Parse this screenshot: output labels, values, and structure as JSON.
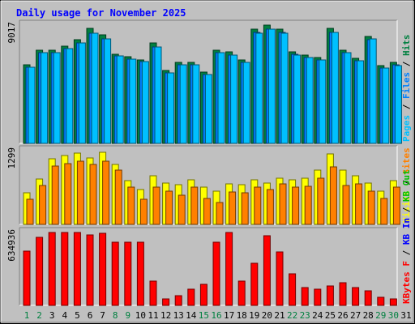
{
  "chart_data": {
    "title": "Daily usage for November 2025",
    "type": "bar",
    "x": [
      "1",
      "2",
      "3",
      "4",
      "5",
      "6",
      "7",
      "8",
      "9",
      "10",
      "11",
      "12",
      "13",
      "14",
      "15",
      "16",
      "17",
      "18",
      "19",
      "20",
      "21",
      "22",
      "23",
      "24",
      "25",
      "26",
      "27",
      "28",
      "29",
      "30",
      "31"
    ],
    "weekend_days": [
      "1",
      "2",
      "8",
      "9",
      "15",
      "16",
      "22",
      "23",
      "29",
      "30"
    ],
    "colors": {
      "pages": "#00c0ff",
      "files": "#0080ff",
      "hits": "#008040",
      "visits": "#ffff00",
      "sites": "#ff8000",
      "kb_f": "#ff0000",
      "kb_in": "#0000ff",
      "kb_out": "#00c000",
      "title": "#0000ff",
      "weekend_label": "#008040",
      "weekday_label": "#000000",
      "panel_bg": "#c0c0c0"
    },
    "panels": [
      {
        "name": "hits-files-pages",
        "max_label": "9017",
        "ymax": 9017,
        "legend": [
          {
            "text": "Pages",
            "color": "#00c0ff"
          },
          {
            "text": " / ",
            "color": "#000000"
          },
          {
            "text": "Files",
            "color": "#0080ff"
          },
          {
            "text": " / ",
            "color": "#000000"
          },
          {
            "text": "Hits",
            "color": "#008040"
          }
        ],
        "series": [
          {
            "name": "Hits",
            "color": "#008040",
            "values": [
              5980,
              7120,
              7120,
              7440,
              7900,
              8780,
              8280,
              6820,
              6580,
              6350,
              7650,
              5550,
              6160,
              6160,
              5430,
              7120,
              6980,
              6350,
              8710,
              9017,
              8710,
              6970,
              6760,
              6560,
              8750,
              7120,
              6460,
              8180,
              5910,
              6160,
              0
            ]
          },
          {
            "name": "Files",
            "color": "#0080ff",
            "values": [
              5810,
              6920,
              6920,
              7240,
              7640,
              8430,
              7960,
              6660,
              6420,
              6210,
              7380,
              5380,
              5960,
              5960,
              5260,
              6920,
              6760,
              6170,
              8440,
              8720,
              8440,
              6770,
              6560,
              6370,
              8450,
              6920,
              6270,
              7930,
              5720,
              5960,
              0
            ]
          },
          {
            "name": "Pages",
            "color": "#00c0ff",
            "values": [
              5800,
              6900,
              6920,
              7230,
              7630,
              8430,
              7950,
              6650,
              6410,
              6210,
              7360,
              5380,
              5960,
              5960,
              5250,
              6900,
              6740,
              6160,
              8420,
              8720,
              8420,
              6760,
              6560,
              6360,
              8450,
              6910,
              6270,
              7940,
              5720,
              5950,
              0
            ]
          }
        ]
      },
      {
        "name": "visits-sites",
        "max_label": "1299",
        "ymax": 1299,
        "legend": [
          {
            "text": "Visits",
            "color": "#ffff00"
          },
          {
            "text": " / ",
            "color": "#000000"
          },
          {
            "text": "Sites",
            "color": "#ff8000"
          }
        ],
        "series": [
          {
            "name": "Visits",
            "color": "#ffff00",
            "values": [
              560,
              800,
              1160,
              1220,
              1250,
              1170,
              1270,
              1060,
              770,
              620,
              850,
              730,
              700,
              780,
              660,
              590,
              710,
              700,
              780,
              730,
              820,
              790,
              820,
              950,
              1240,
              960,
              860,
              730,
              580,
              770,
              0
            ]
          },
          {
            "name": "Sites",
            "color": "#ff8000",
            "values": [
              440,
              680,
              1030,
              1070,
              1110,
              1050,
              1110,
              950,
              650,
              440,
              660,
              580,
              510,
              660,
              460,
              380,
              570,
              550,
              660,
              610,
              710,
              660,
              670,
              810,
              1020,
              690,
              710,
              590,
              450,
              660,
              0
            ]
          }
        ]
      },
      {
        "name": "kbytes",
        "max_label": "634936",
        "ymax": 634936,
        "legend": [
          {
            "text": "KBytes F",
            "color": "#ff0000"
          },
          {
            "text": " / ",
            "color": "#000000"
          },
          {
            "text": "KB In",
            "color": "#0000ff"
          },
          {
            "text": " / ",
            "color": "#000000"
          },
          {
            "text": "KB Out",
            "color": "#00c000"
          }
        ],
        "series": [
          {
            "name": "KBytes F",
            "color": "#ff0000",
            "values": [
              470000,
              595000,
              634936,
              634936,
              634936,
              615000,
              626000,
              551000,
              551000,
              551000,
              213000,
              57000,
              85000,
              142000,
              184000,
              551000,
              634936,
              213000,
              365000,
              604000,
              467000,
              278000,
              156000,
              142000,
              170000,
              199000,
              156000,
              127000,
              71000,
              57000,
              0
            ]
          }
        ]
      }
    ]
  }
}
